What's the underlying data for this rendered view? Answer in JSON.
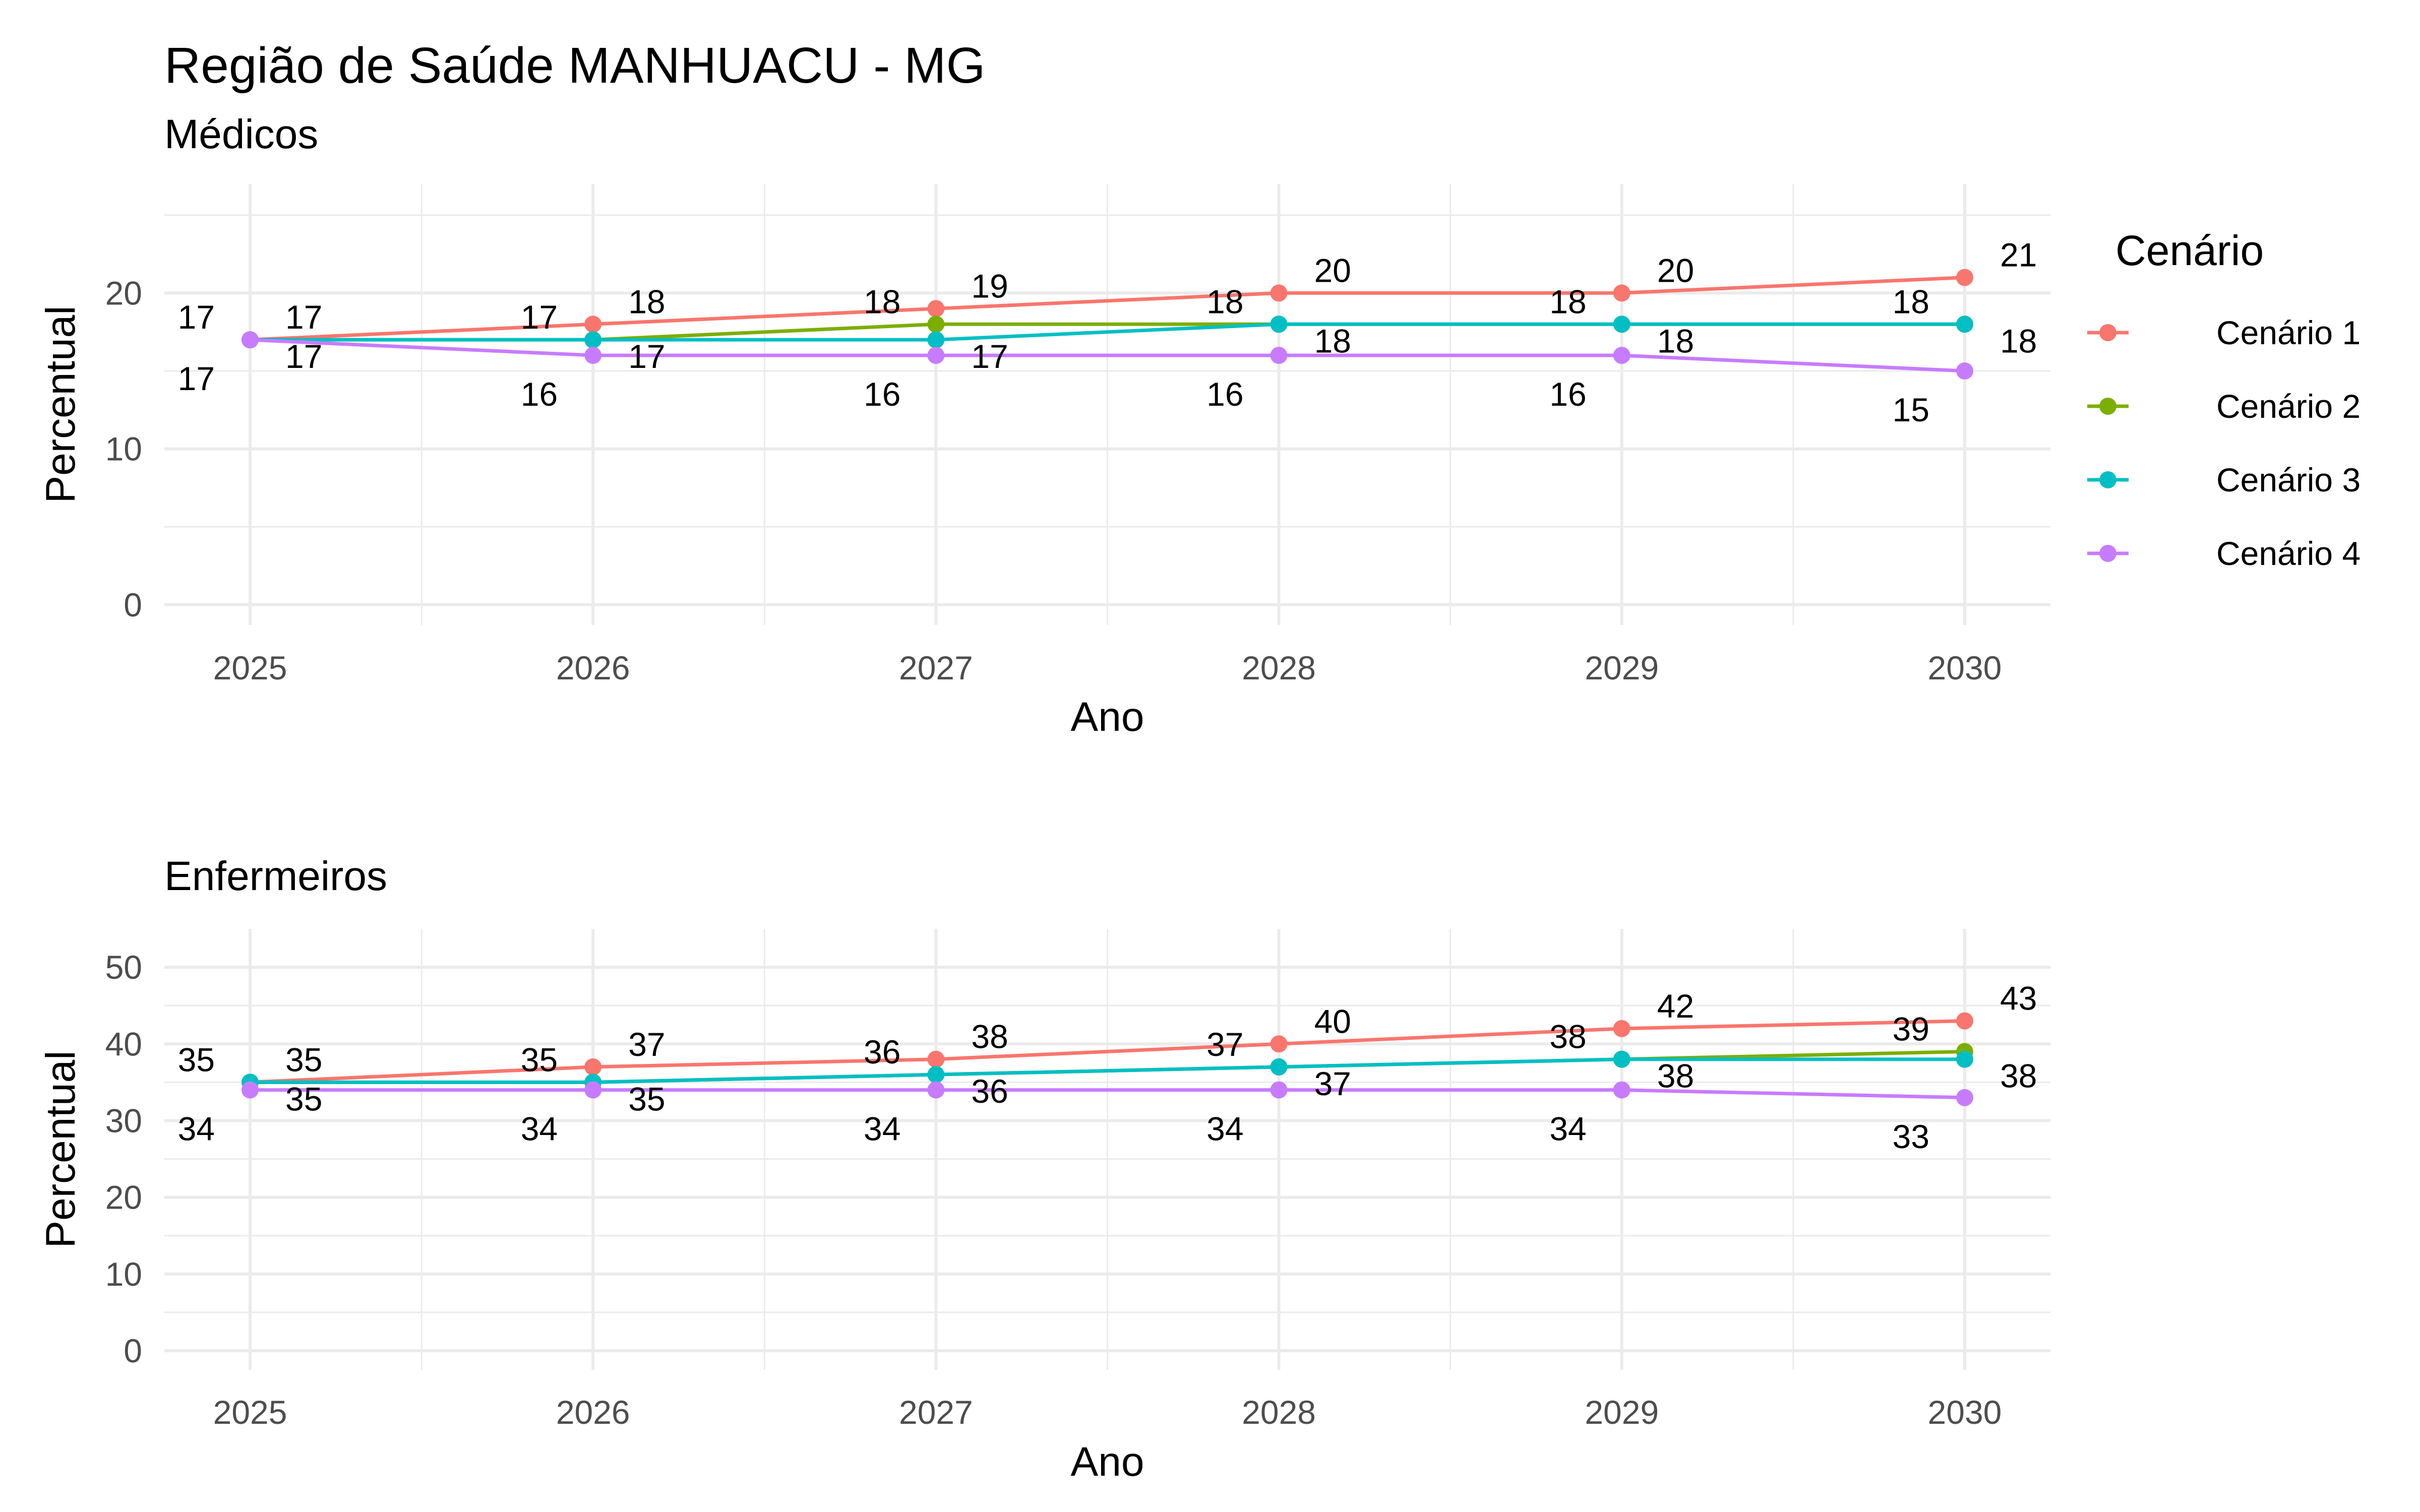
{
  "title": "Região de Saúde MANHUACU - MG",
  "legend": {
    "title": "Cenário",
    "position": "right",
    "items": [
      {
        "name": "Cenário 1",
        "color": "#F8766D"
      },
      {
        "name": "Cenário 2",
        "color": "#7CAE00"
      },
      {
        "name": "Cenário 3",
        "color": "#00BFC4"
      },
      {
        "name": "Cenário 4",
        "color": "#C77CFF"
      }
    ]
  },
  "chart_data": [
    {
      "type": "line",
      "subtitle": "Médicos",
      "xlabel": "Ano",
      "ylabel": "Percentual",
      "x": [
        2025,
        2026,
        2027,
        2028,
        2029,
        2030
      ],
      "xlim": [
        2024.75,
        2030.25
      ],
      "ylim": [
        -1.3,
        27
      ],
      "yticks": [
        0,
        10,
        20
      ],
      "grid": true,
      "series": [
        {
          "name": "Cenário 1",
          "values": [
            17,
            18,
            19,
            20,
            20,
            21
          ]
        },
        {
          "name": "Cenário 2",
          "values": [
            17,
            17,
            18,
            18,
            18,
            18
          ]
        },
        {
          "name": "Cenário 3",
          "values": [
            17,
            17,
            17,
            18,
            18,
            18
          ]
        },
        {
          "name": "Cenário 4",
          "values": [
            17,
            16,
            16,
            16,
            16,
            15
          ]
        }
      ]
    },
    {
      "type": "line",
      "subtitle": "Enfermeiros",
      "xlabel": "Ano",
      "ylabel": "Percentual",
      "x": [
        2025,
        2026,
        2027,
        2028,
        2029,
        2030
      ],
      "xlim": [
        2024.75,
        2030.25
      ],
      "ylim": [
        -2.5,
        55
      ],
      "yticks": [
        0,
        10,
        20,
        30,
        40,
        50
      ],
      "grid": true,
      "series": [
        {
          "name": "Cenário 1",
          "values": [
            35,
            37,
            38,
            40,
            42,
            43
          ]
        },
        {
          "name": "Cenário 2",
          "values": [
            35,
            35,
            36,
            37,
            38,
            39
          ]
        },
        {
          "name": "Cenário 3",
          "values": [
            35,
            35,
            36,
            37,
            38,
            38
          ]
        },
        {
          "name": "Cenário 4",
          "values": [
            34,
            34,
            34,
            34,
            34,
            33
          ]
        }
      ]
    }
  ]
}
